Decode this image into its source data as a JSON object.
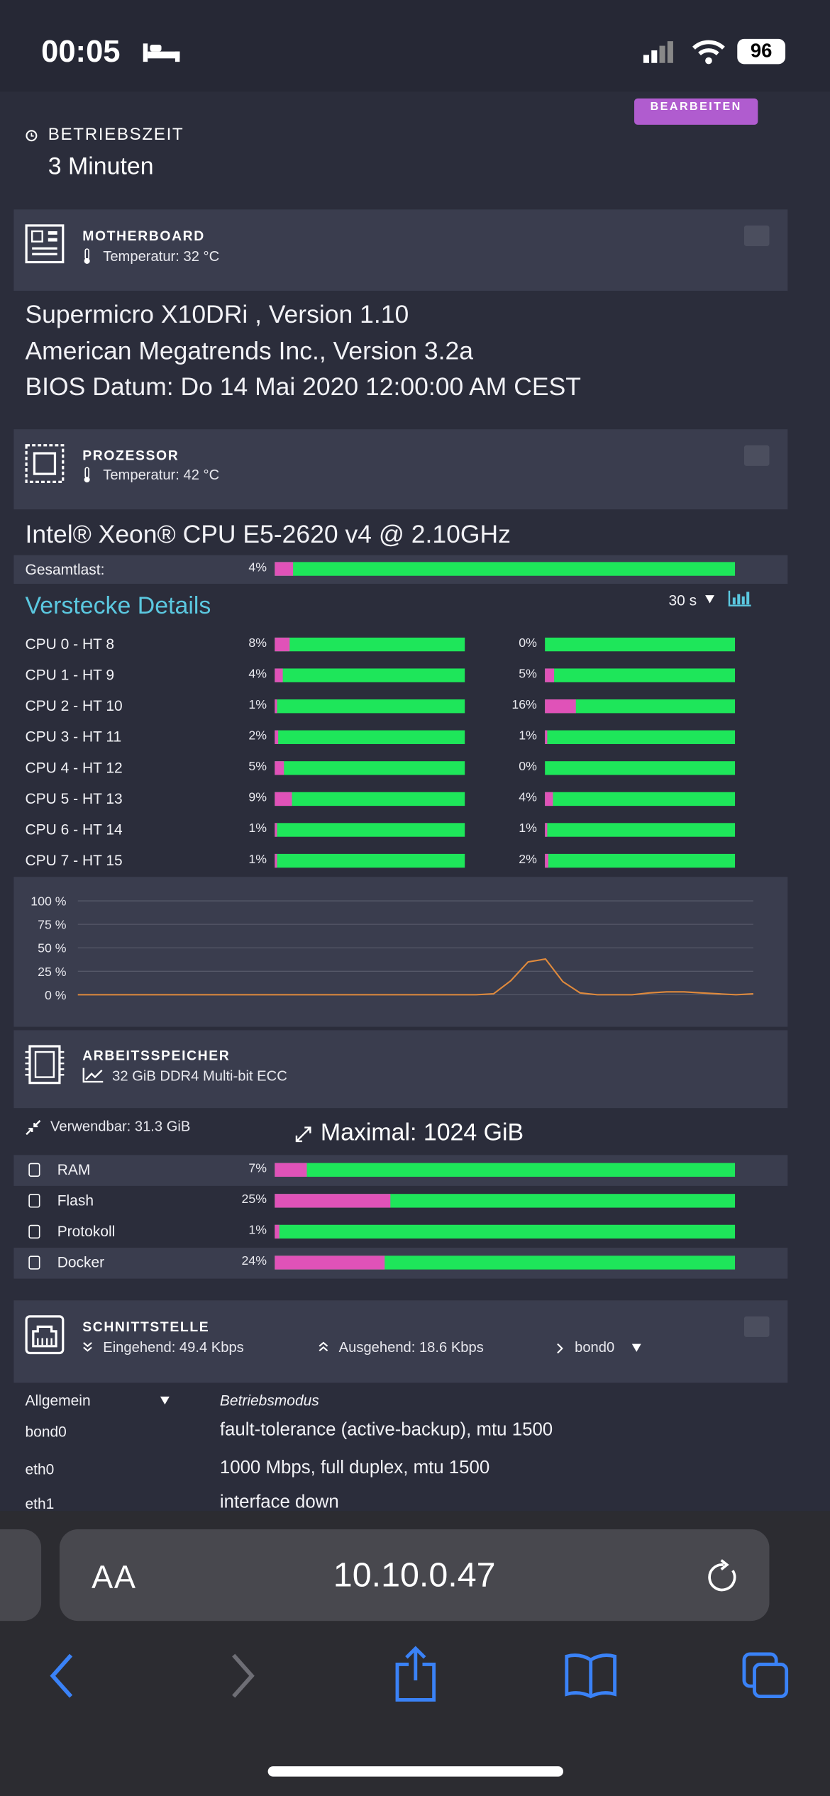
{
  "status_bar": {
    "time": "00:05",
    "battery": "96"
  },
  "edit_button": "BEARBEITEN",
  "uptime": {
    "label": "BETRIEBSZEIT",
    "value": "3 Minuten"
  },
  "motherboard": {
    "title": "MOTHERBOARD",
    "temperature": "Temperatur: 32 °C",
    "lines": [
      "Supermicro X10DRi , Version 1.10",
      "American Megatrends Inc., Version 3.2a",
      "BIOS Datum: Do 14 Mai 2020 12:00:00 AM CEST"
    ]
  },
  "processor": {
    "title": "PROZESSOR",
    "temperature": "Temperatur: 42 °C",
    "model": "Intel® Xeon® CPU E5-2620 v4 @ 2.10GHz",
    "total_label": "Gesamtlast:",
    "total_load": {
      "value": 4,
      "label": "4%"
    },
    "details_toggle": "Verstecke Details",
    "interval": "30 s",
    "cpus": [
      {
        "name": "CPU 0 - HT 8",
        "load": {
          "value": 8,
          "label": "8%"
        },
        "ht_load": {
          "value": 0,
          "label": "0%"
        }
      },
      {
        "name": "CPU 1 - HT 9",
        "load": {
          "value": 4,
          "label": "4%"
        },
        "ht_load": {
          "value": 5,
          "label": "5%"
        }
      },
      {
        "name": "CPU 2 - HT 10",
        "load": {
          "value": 1,
          "label": "1%"
        },
        "ht_load": {
          "value": 16,
          "label": "16%"
        }
      },
      {
        "name": "CPU 3 - HT 11",
        "load": {
          "value": 2,
          "label": "2%"
        },
        "ht_load": {
          "value": 1,
          "label": "1%"
        }
      },
      {
        "name": "CPU 4 - HT 12",
        "load": {
          "value": 5,
          "label": "5%"
        },
        "ht_load": {
          "value": 0,
          "label": "0%"
        }
      },
      {
        "name": "CPU 5 - HT 13",
        "load": {
          "value": 9,
          "label": "9%"
        },
        "ht_load": {
          "value": 4,
          "label": "4%"
        }
      },
      {
        "name": "CPU 6 - HT 14",
        "load": {
          "value": 1,
          "label": "1%"
        },
        "ht_load": {
          "value": 1,
          "label": "1%"
        }
      },
      {
        "name": "CPU 7 - HT 15",
        "load": {
          "value": 1,
          "label": "1%"
        },
        "ht_load": {
          "value": 2,
          "label": "2%"
        }
      }
    ]
  },
  "cpu_graph": {
    "ylim": [
      0,
      100
    ],
    "yticks": [
      {
        "value": 100,
        "label": "100 %"
      },
      {
        "value": 75,
        "label": "75 %"
      },
      {
        "value": 50,
        "label": "50 %"
      },
      {
        "value": 25,
        "label": "25 %"
      },
      {
        "value": 0,
        "label": "0 %"
      }
    ],
    "color": "#e08a3c",
    "values": [
      0,
      0,
      0,
      0,
      0,
      0,
      0,
      0,
      0,
      0,
      0,
      0,
      0,
      0,
      0,
      0,
      0,
      0,
      0,
      0,
      0,
      0,
      0,
      0,
      1,
      15,
      35,
      38,
      14,
      2,
      0,
      0,
      0,
      2,
      3,
      3,
      2,
      1,
      0,
      1
    ]
  },
  "memory": {
    "title": "ARBEITSSPEICHER",
    "module": "32 GiB DDR4 Multi-bit ECC",
    "usable": "Verwendbar: 31.3 GiB",
    "maximum": "Maximal: 1024 GiB",
    "rows": [
      {
        "name": "RAM",
        "usage": {
          "value": 7,
          "label": "7%"
        }
      },
      {
        "name": "Flash",
        "usage": {
          "value": 25,
          "label": "25%"
        }
      },
      {
        "name": "Protokoll",
        "usage": {
          "value": 1,
          "label": "1%"
        }
      },
      {
        "name": "Docker",
        "usage": {
          "value": 24,
          "label": "24%"
        }
      }
    ]
  },
  "interface": {
    "title": "SCHNITTSTELLE",
    "inbound": "Eingehend: 49.4 Kbps",
    "outbound": "Ausgehend: 18.6 Kbps",
    "selected": "bond0",
    "general_header": "Allgemein",
    "mode_header": "Betriebsmodus",
    "rows": [
      [
        "bond0",
        "fault-tolerance (active-backup), mtu 1500"
      ],
      [
        "eth0",
        "1000 Mbps, full duplex, mtu 1500"
      ],
      [
        "eth1",
        "interface down"
      ]
    ]
  },
  "browser": {
    "text_size": "AA",
    "url": "10.10.0.47"
  }
}
